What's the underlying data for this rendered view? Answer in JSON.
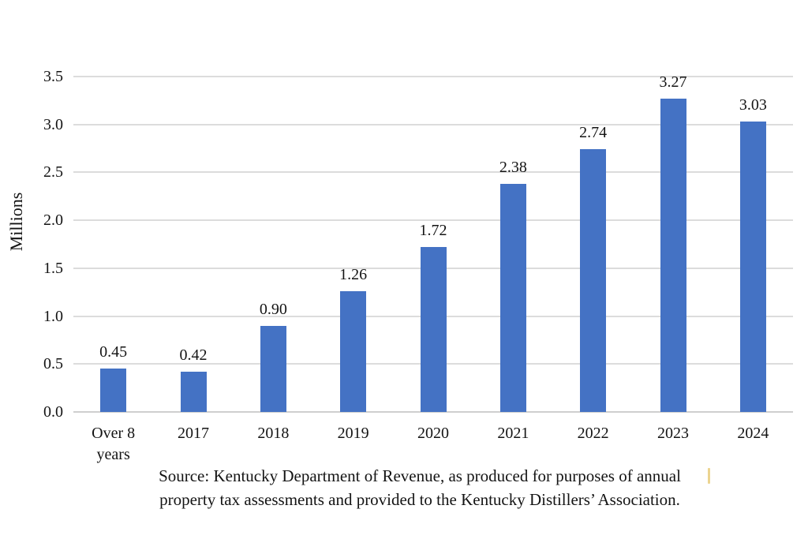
{
  "chart_data": {
    "type": "bar",
    "title": "",
    "xlabel": "",
    "ylabel": "Millions",
    "categories": [
      "Over 8\nyears",
      "2017",
      "2018",
      "2019",
      "2020",
      "2021",
      "2022",
      "2023",
      "2024"
    ],
    "values": [
      0.45,
      0.42,
      0.9,
      1.26,
      1.72,
      2.38,
      2.74,
      3.27,
      3.03
    ],
    "value_labels": [
      "0.45",
      "0.42",
      "0.90",
      "1.26",
      "1.72",
      "2.38",
      "2.74",
      "3.27",
      "3.03"
    ],
    "ylim": [
      0,
      3.5
    ],
    "yticks": [
      "0.0",
      "0.5",
      "1.0",
      "1.5",
      "2.0",
      "2.5",
      "3.0",
      "3.5"
    ],
    "grid": true,
    "legend": false,
    "bar_color": "#4472C4",
    "gridline_color": "#dcdcdc",
    "axis_line_color": "#cfcfcf",
    "text_color": "#141414",
    "source_note": [
      "Source: Kentucky Department of Revenue, as produced for purposes of annual",
      "property tax assessments and provided to the Kentucky Distillers’ Association."
    ]
  }
}
